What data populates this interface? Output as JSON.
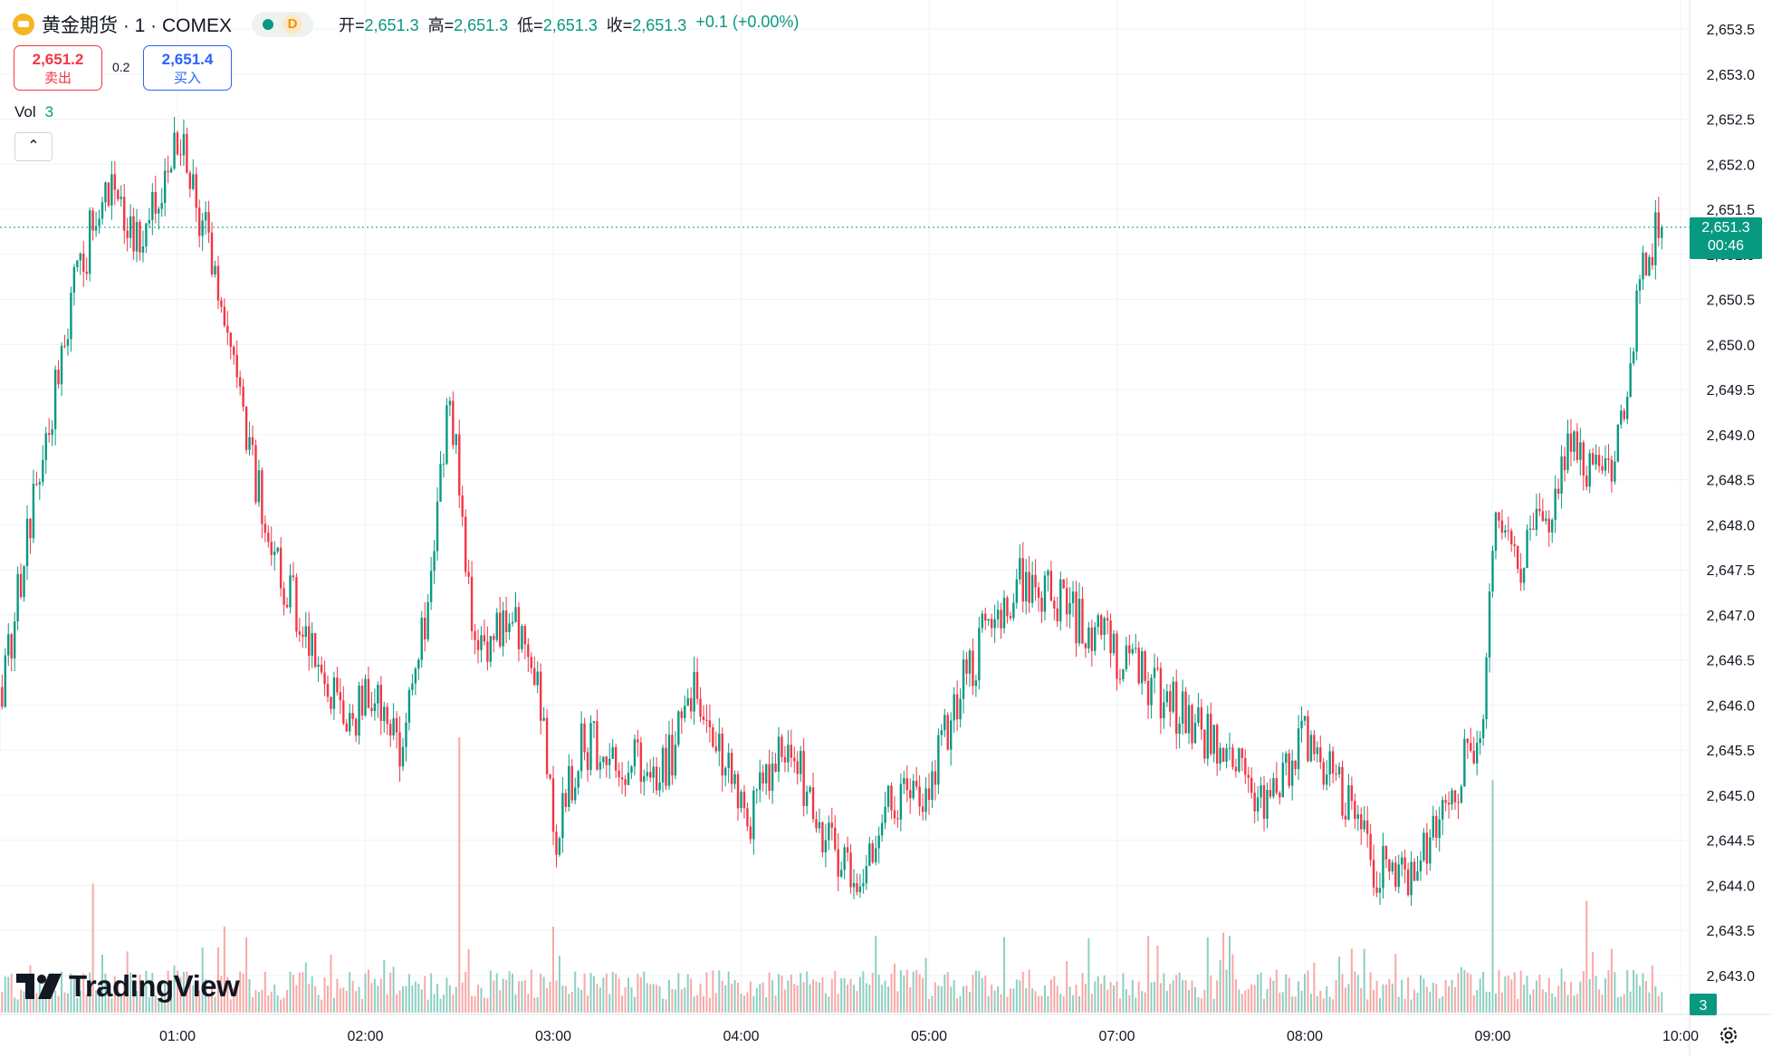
{
  "header": {
    "symbol": "黄金期货 · 1 · COMEX",
    "status_letter": "D",
    "ohlc": [
      {
        "key": "开=",
        "value": "2,651.3"
      },
      {
        "key": "高=",
        "value": "2,651.3"
      },
      {
        "key": "低=",
        "value": "2,651.3"
      },
      {
        "key": "收=",
        "value": "2,651.3"
      }
    ],
    "change": "+0.1 (+0.00%)"
  },
  "trade": {
    "sell_price": "2,651.2",
    "sell_label": "卖出",
    "spread": "0.2",
    "buy_price": "2,651.4",
    "buy_label": "买入"
  },
  "volume_legend": {
    "label": "Vol",
    "value": "3"
  },
  "collapse_glyph": "⌃",
  "wordmark": "TradingView",
  "price_tag": {
    "price": "2,651.3",
    "countdown": "00:46"
  },
  "volume_tag": "3",
  "colors": {
    "up": "#089981",
    "down": "#f23645",
    "up_vol": "#8fcfc3",
    "down_vol": "#f7a9a7",
    "grid": "#f0f3fa"
  },
  "chart_data": {
    "type": "candlestick",
    "interval": "1 minute",
    "x_ticks": [
      "01:00",
      "02:00",
      "03:00",
      "04:00",
      "05:00",
      "07:00",
      "08:00",
      "09:00",
      "10:00"
    ],
    "y_ticks": [
      "2,653.5",
      "2,653.0",
      "2,652.5",
      "2,652.0",
      "2,651.5",
      "2,651.0",
      "2,650.5",
      "2,650.0",
      "2,649.5",
      "2,649.0",
      "2,648.5",
      "2,648.0",
      "2,647.5",
      "2,647.0",
      "2,646.5",
      "2,646.0",
      "2,645.5",
      "2,645.0",
      "2,644.5",
      "2,644.0",
      "2,643.5",
      "2,643.0"
    ],
    "ylim": [
      2642.6,
      2653.8
    ],
    "last_price": 2651.3,
    "close_path": [
      {
        "t": 0.0,
        "p": 2645.4
      },
      {
        "t": 0.25,
        "p": 2648.4
      },
      {
        "t": 0.45,
        "p": 2650.6
      },
      {
        "t": 0.62,
        "p": 2651.8
      },
      {
        "t": 0.8,
        "p": 2651.1
      },
      {
        "t": 1.0,
        "p": 2652.3
      },
      {
        "t": 1.15,
        "p": 2651.2
      },
      {
        "t": 1.3,
        "p": 2649.6
      },
      {
        "t": 1.5,
        "p": 2647.7
      },
      {
        "t": 1.7,
        "p": 2646.8
      },
      {
        "t": 1.9,
        "p": 2645.7
      },
      {
        "t": 2.05,
        "p": 2646.2
      },
      {
        "t": 2.2,
        "p": 2645.5
      },
      {
        "t": 2.33,
        "p": 2647.1
      },
      {
        "t": 2.45,
        "p": 2649.5
      },
      {
        "t": 2.55,
        "p": 2647.2
      },
      {
        "t": 2.65,
        "p": 2646.6
      },
      {
        "t": 2.75,
        "p": 2647.1
      },
      {
        "t": 2.92,
        "p": 2646.2
      },
      {
        "t": 3.02,
        "p": 2644.5
      },
      {
        "t": 3.15,
        "p": 2645.6
      },
      {
        "t": 3.4,
        "p": 2645.4
      },
      {
        "t": 3.6,
        "p": 2645.3
      },
      {
        "t": 3.75,
        "p": 2646.2
      },
      {
        "t": 3.9,
        "p": 2645.4
      },
      {
        "t": 4.05,
        "p": 2644.8
      },
      {
        "t": 4.25,
        "p": 2645.6
      },
      {
        "t": 4.45,
        "p": 2644.5
      },
      {
        "t": 4.65,
        "p": 2644.1
      },
      {
        "t": 4.8,
        "p": 2645.0
      },
      {
        "t": 4.97,
        "p": 2644.8
      },
      {
        "t": 5.1,
        "p": 2645.8
      },
      {
        "t": 5.3,
        "p": 2646.8
      },
      {
        "t": 5.5,
        "p": 2647.4
      },
      {
        "t": 5.65,
        "p": 2647.3
      },
      {
        "t": 5.85,
        "p": 2646.8
      },
      {
        "t": 6.05,
        "p": 2646.5
      },
      {
        "t": 6.2,
        "p": 2646.2
      },
      {
        "t": 6.4,
        "p": 2645.8
      },
      {
        "t": 6.6,
        "p": 2645.5
      },
      {
        "t": 6.8,
        "p": 2644.8
      },
      {
        "t": 7.0,
        "p": 2645.6
      },
      {
        "t": 7.2,
        "p": 2645.0
      },
      {
        "t": 7.38,
        "p": 2644.2
      },
      {
        "t": 7.55,
        "p": 2644.0
      },
      {
        "t": 7.72,
        "p": 2644.6
      },
      {
        "t": 7.85,
        "p": 2645.4
      },
      {
        "t": 7.95,
        "p": 2645.9
      },
      {
        "t": 8.02,
        "p": 2648.3
      },
      {
        "t": 8.12,
        "p": 2647.5
      },
      {
        "t": 8.3,
        "p": 2648.2
      },
      {
        "t": 8.42,
        "p": 2649.0
      },
      {
        "t": 8.58,
        "p": 2648.4
      },
      {
        "t": 8.7,
        "p": 2649.2
      },
      {
        "t": 8.8,
        "p": 2650.9
      },
      {
        "t": 8.9,
        "p": 2651.3
      }
    ],
    "volume_spikes": [
      {
        "t": 2.5,
        "v": 3.2
      },
      {
        "t": 3.0,
        "v": 1.0
      },
      {
        "t": 8.0,
        "v": 2.7
      },
      {
        "t": 8.5,
        "v": 1.3
      },
      {
        "t": 0.55,
        "v": 1.5
      },
      {
        "t": 1.25,
        "v": 1.0
      }
    ],
    "last_volume": 3
  }
}
